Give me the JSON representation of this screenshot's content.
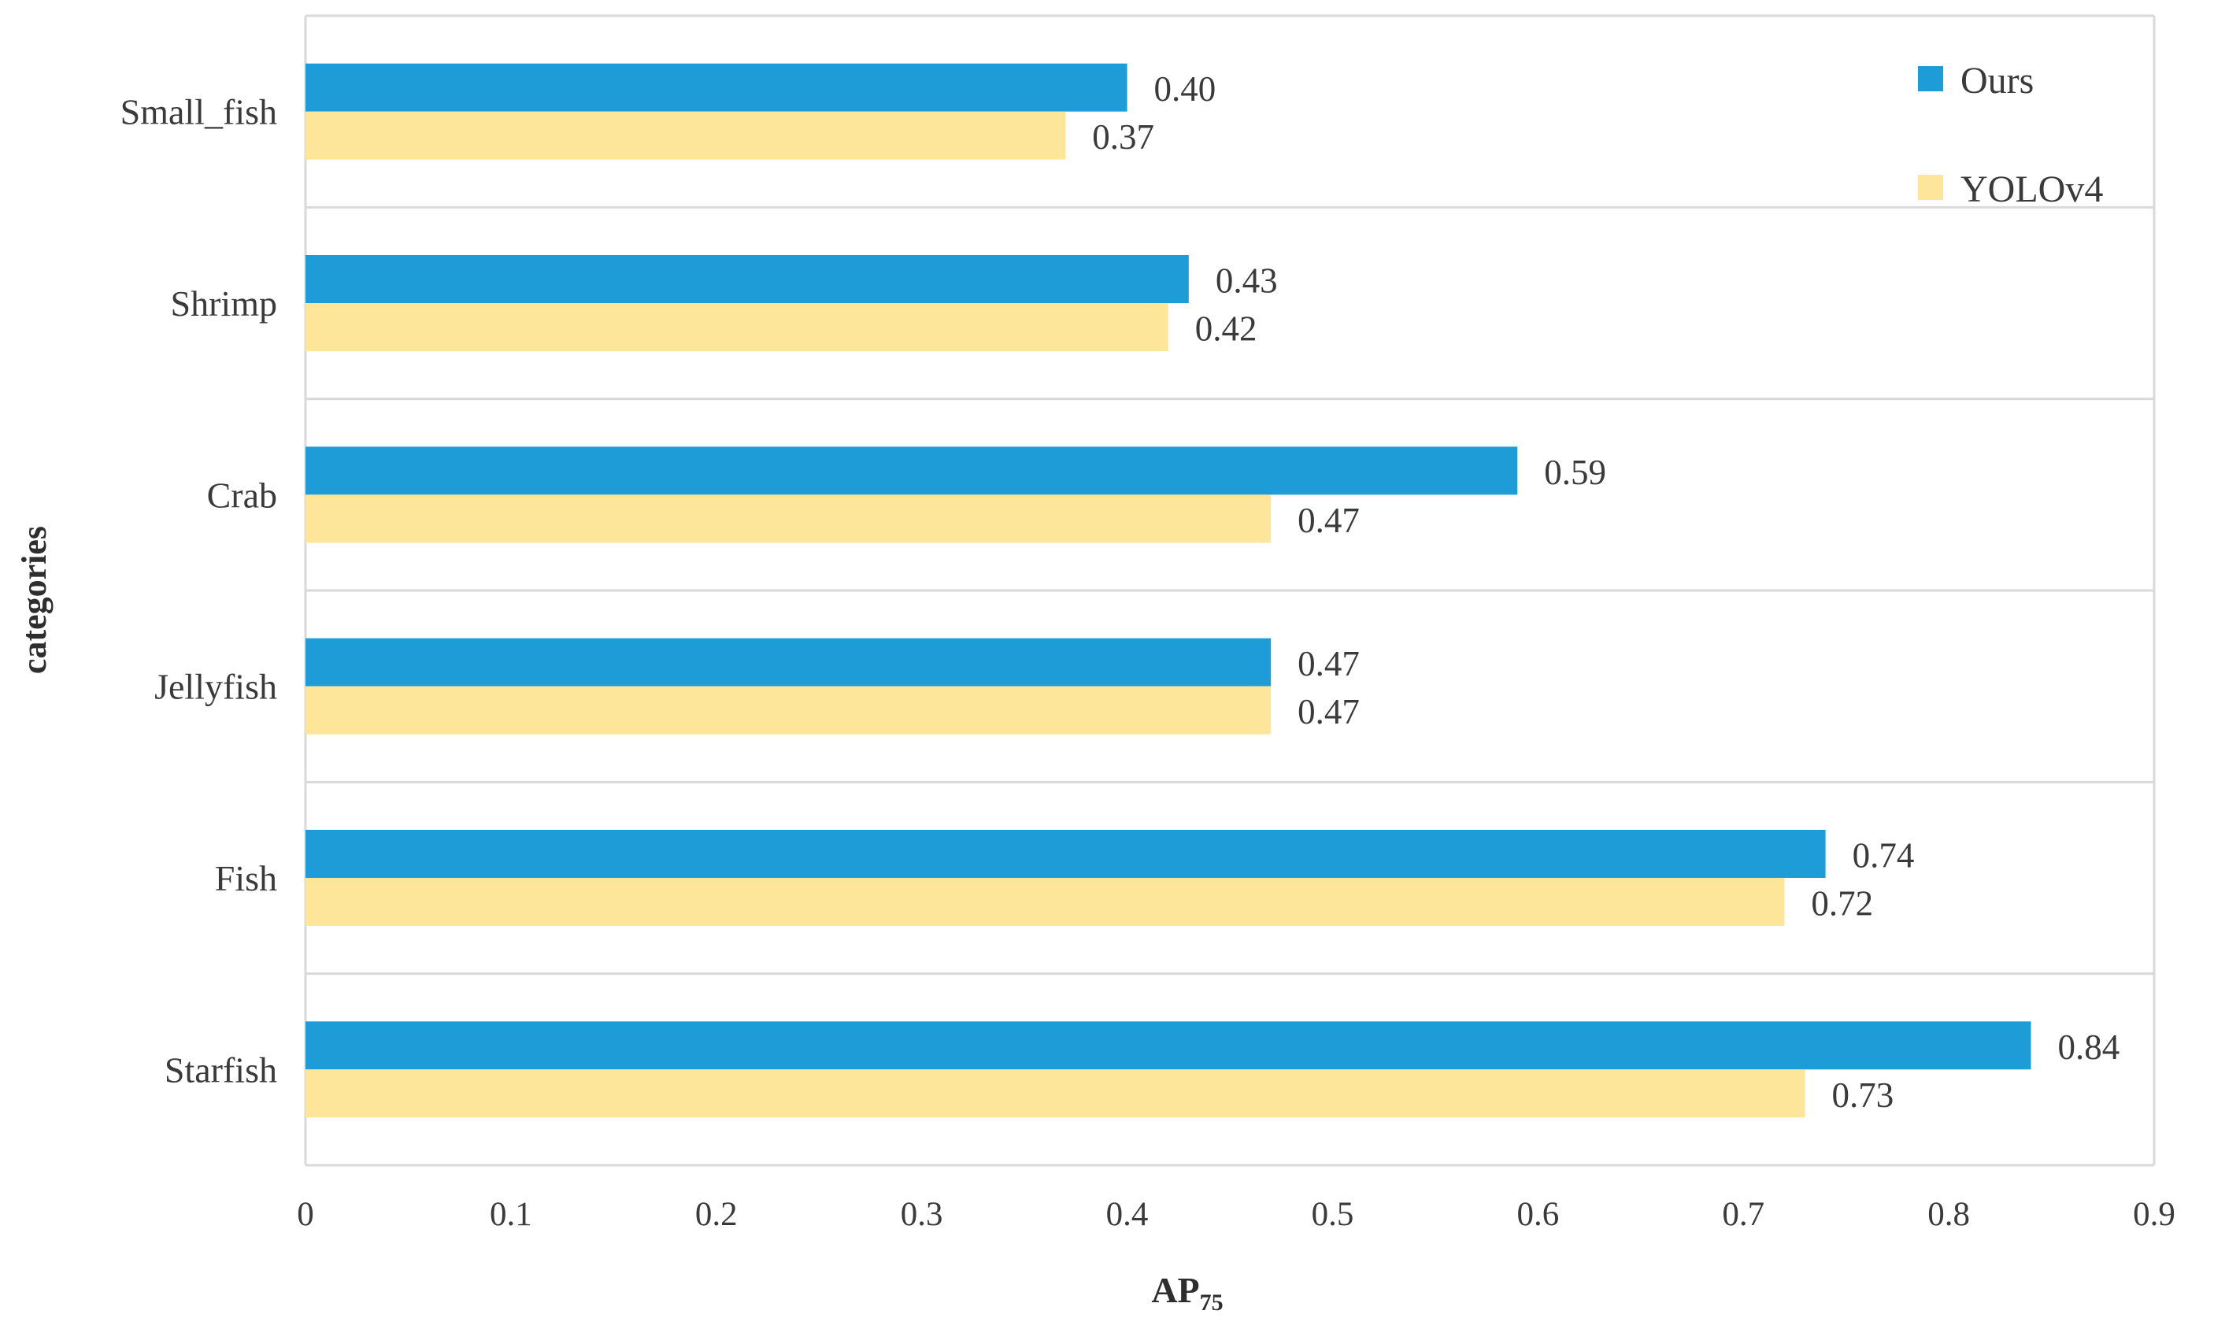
{
  "chart_data": {
    "type": "bar",
    "orientation": "horizontal",
    "categories": [
      "Small_fish",
      "Shrimp",
      "Crab",
      "Jellyfish",
      "Fish",
      "Starfish"
    ],
    "series": [
      {
        "name": "Ours",
        "color": "#1e9cd8",
        "values": [
          0.4,
          0.43,
          0.59,
          0.47,
          0.74,
          0.84
        ]
      },
      {
        "name": "YOLOv4",
        "color": "#fde59a",
        "values": [
          0.37,
          0.42,
          0.47,
          0.47,
          0.72,
          0.73
        ]
      }
    ],
    "value_labels": {
      "Ours": [
        "0.40",
        "0.43",
        "0.59",
        "0.47",
        "0.74",
        "0.84"
      ],
      "YOLOv4": [
        "0.37",
        "0.42",
        "0.47",
        "0.47",
        "0.72",
        "0.73"
      ]
    },
    "xlim": [
      0,
      0.9
    ],
    "xticks": [
      0,
      0.1,
      0.2,
      0.3,
      0.4,
      0.5,
      0.6,
      0.7,
      0.8,
      0.9
    ],
    "xtick_labels": [
      "0",
      "0.1",
      "0.2",
      "0.3",
      "0.4",
      "0.5",
      "0.6",
      "0.7",
      "0.8",
      "0.9"
    ],
    "xlabel": {
      "main": "AP",
      "subscript": "75"
    },
    "ylabel": "categories",
    "grid": "horizontal separators between categories",
    "legend_position": "top-right",
    "gridline_color": "#d9d9d9",
    "text_color": "#3a3a3a"
  }
}
